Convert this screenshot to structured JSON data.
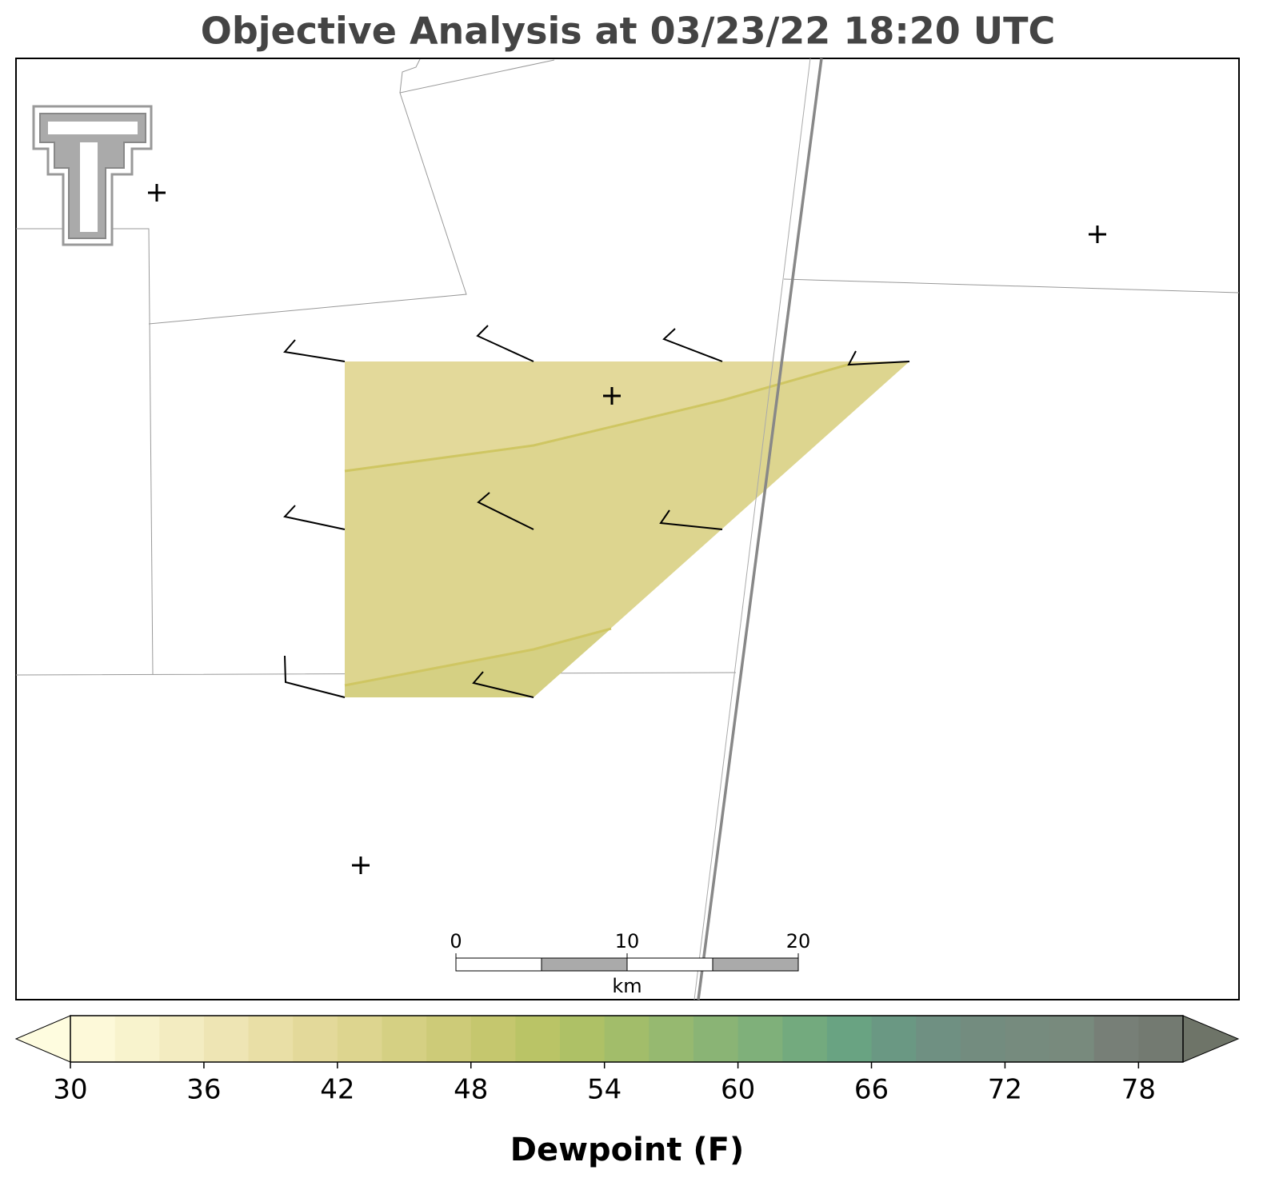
{
  "title": "Objective Analysis at 03/23/22 18:20 UTC",
  "colorbar": {
    "label": "Dewpoint (F)",
    "ticks": [
      30,
      36,
      42,
      48,
      54,
      60,
      66,
      72,
      78
    ],
    "levels": [
      30,
      32,
      34,
      36,
      38,
      40,
      42,
      44,
      46,
      48,
      50,
      52,
      54,
      56,
      58,
      60,
      62,
      64,
      66,
      68,
      70,
      72,
      74,
      76,
      78,
      80
    ],
    "colors": [
      "#fdf9d9",
      "#f8f3cd",
      "#f3ecc1",
      "#eee5b4",
      "#e9dfa6",
      "#e3d99a",
      "#ddd58f",
      "#d5d083",
      "#cdcb78",
      "#c5c76e",
      "#bac466",
      "#aec166",
      "#a2bd6a",
      "#96b970",
      "#8ab475",
      "#7fb07a",
      "#73aa7e",
      "#69a382",
      "#6a9883",
      "#6f9082",
      "#738c7f",
      "#768b7e",
      "#788a7d",
      "#777f77",
      "#737a71"
    ],
    "under_color": "#fefcdf",
    "over_color": "#6e7468"
  },
  "scale_bar": {
    "ticks": [
      0,
      10,
      20
    ],
    "unit": "km"
  }
}
